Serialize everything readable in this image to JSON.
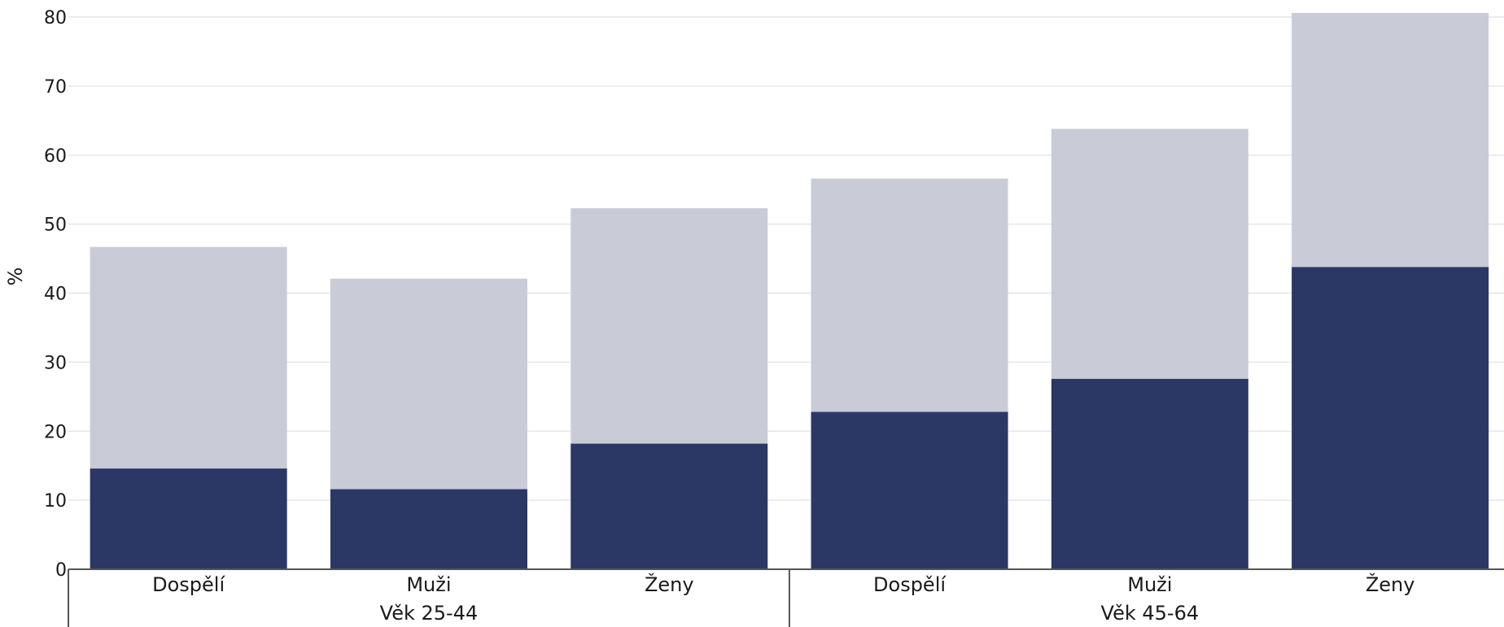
{
  "chart_data": {
    "type": "bar",
    "stacked": true,
    "title": "",
    "xlabel": "",
    "ylabel": "%",
    "ylim": [
      0,
      80
    ],
    "yticks": [
      0,
      10,
      20,
      30,
      40,
      50,
      60,
      70,
      80
    ],
    "grid": true,
    "legend": "none",
    "categories": [
      "Dospělí",
      "Muži",
      "Ženy",
      "Dospělí",
      "Muži",
      "Ženy"
    ],
    "groups": [
      {
        "label": "Věk 25-44",
        "categories": [
          "Dospělí",
          "Muži",
          "Ženy"
        ]
      },
      {
        "label": "Věk 45-64",
        "categories": [
          "Dospělí",
          "Muži",
          "Ženy"
        ]
      }
    ],
    "series": [
      {
        "values": [
          14.6,
          11.6,
          18.2,
          22.8,
          27.6,
          43.8
        ],
        "color": "#2b3765"
      },
      {
        "values": [
          32.1,
          30.5,
          34.1,
          33.8,
          36.2,
          36.8
        ],
        "color": "#c9cbd7"
      }
    ],
    "totals": [
      46.7,
      42.1,
      52.3,
      56.6,
      63.8,
      80.6
    ]
  }
}
